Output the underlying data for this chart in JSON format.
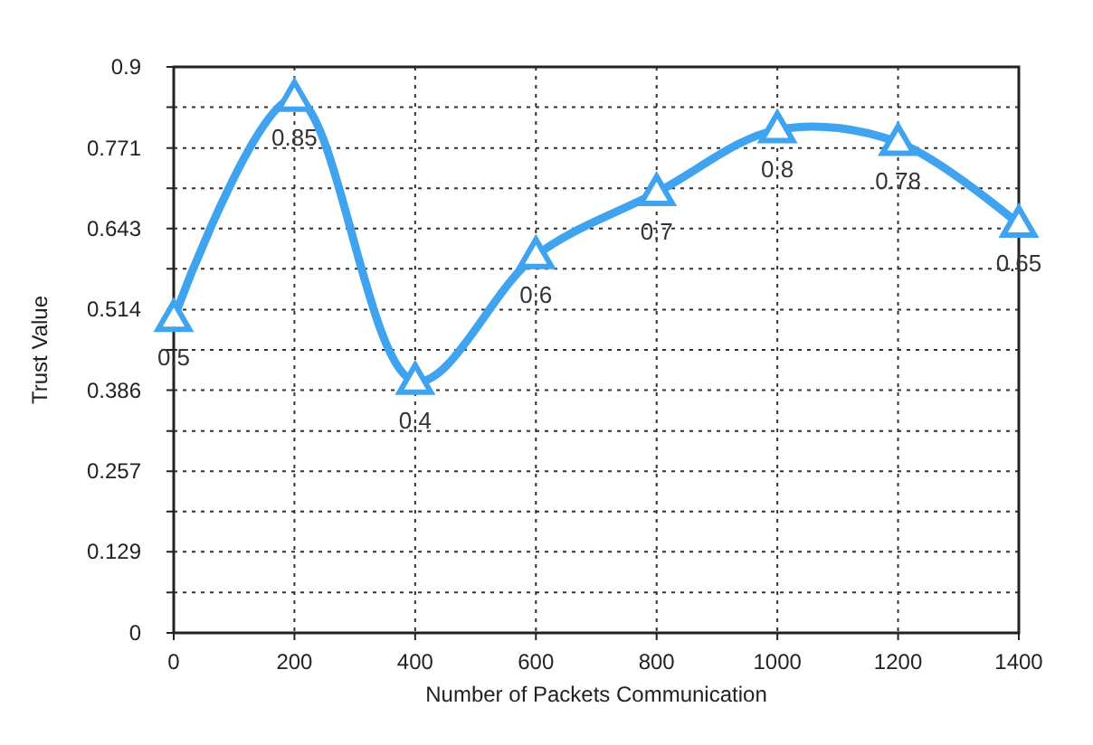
{
  "chart_data": {
    "type": "line",
    "xlabel": "Number of Packets Communication",
    "ylabel": "Trust Value",
    "x": [
      0,
      200,
      400,
      600,
      800,
      1000,
      1200,
      1400
    ],
    "series": [
      {
        "color": "#3fa3ef",
        "values": [
          0.5,
          0.85,
          0.4,
          0.6,
          0.7,
          0.8,
          0.78,
          0.65
        ]
      }
    ],
    "xlim": [
      0,
      1400
    ],
    "xticks": [
      0,
      200,
      400,
      600,
      800,
      1000,
      1200,
      1400
    ],
    "ylim": [
      0,
      0.9
    ],
    "yticks": [
      0,
      {
        "value": 0.0643,
        "label": null
      },
      0.129,
      {
        "value": 0.193,
        "label": null
      },
      0.257,
      {
        "value": 0.321,
        "label": null
      },
      0.386,
      {
        "value": 0.45,
        "label": null
      },
      0.514,
      {
        "value": 0.579,
        "label": null
      },
      0.643,
      {
        "value": 0.707,
        "label": null
      },
      0.771,
      {
        "value": 0.836,
        "label": null
      },
      0.9
    ],
    "grid": true,
    "marker": "triangle",
    "line_style": "solid",
    "data_labels": true
  }
}
